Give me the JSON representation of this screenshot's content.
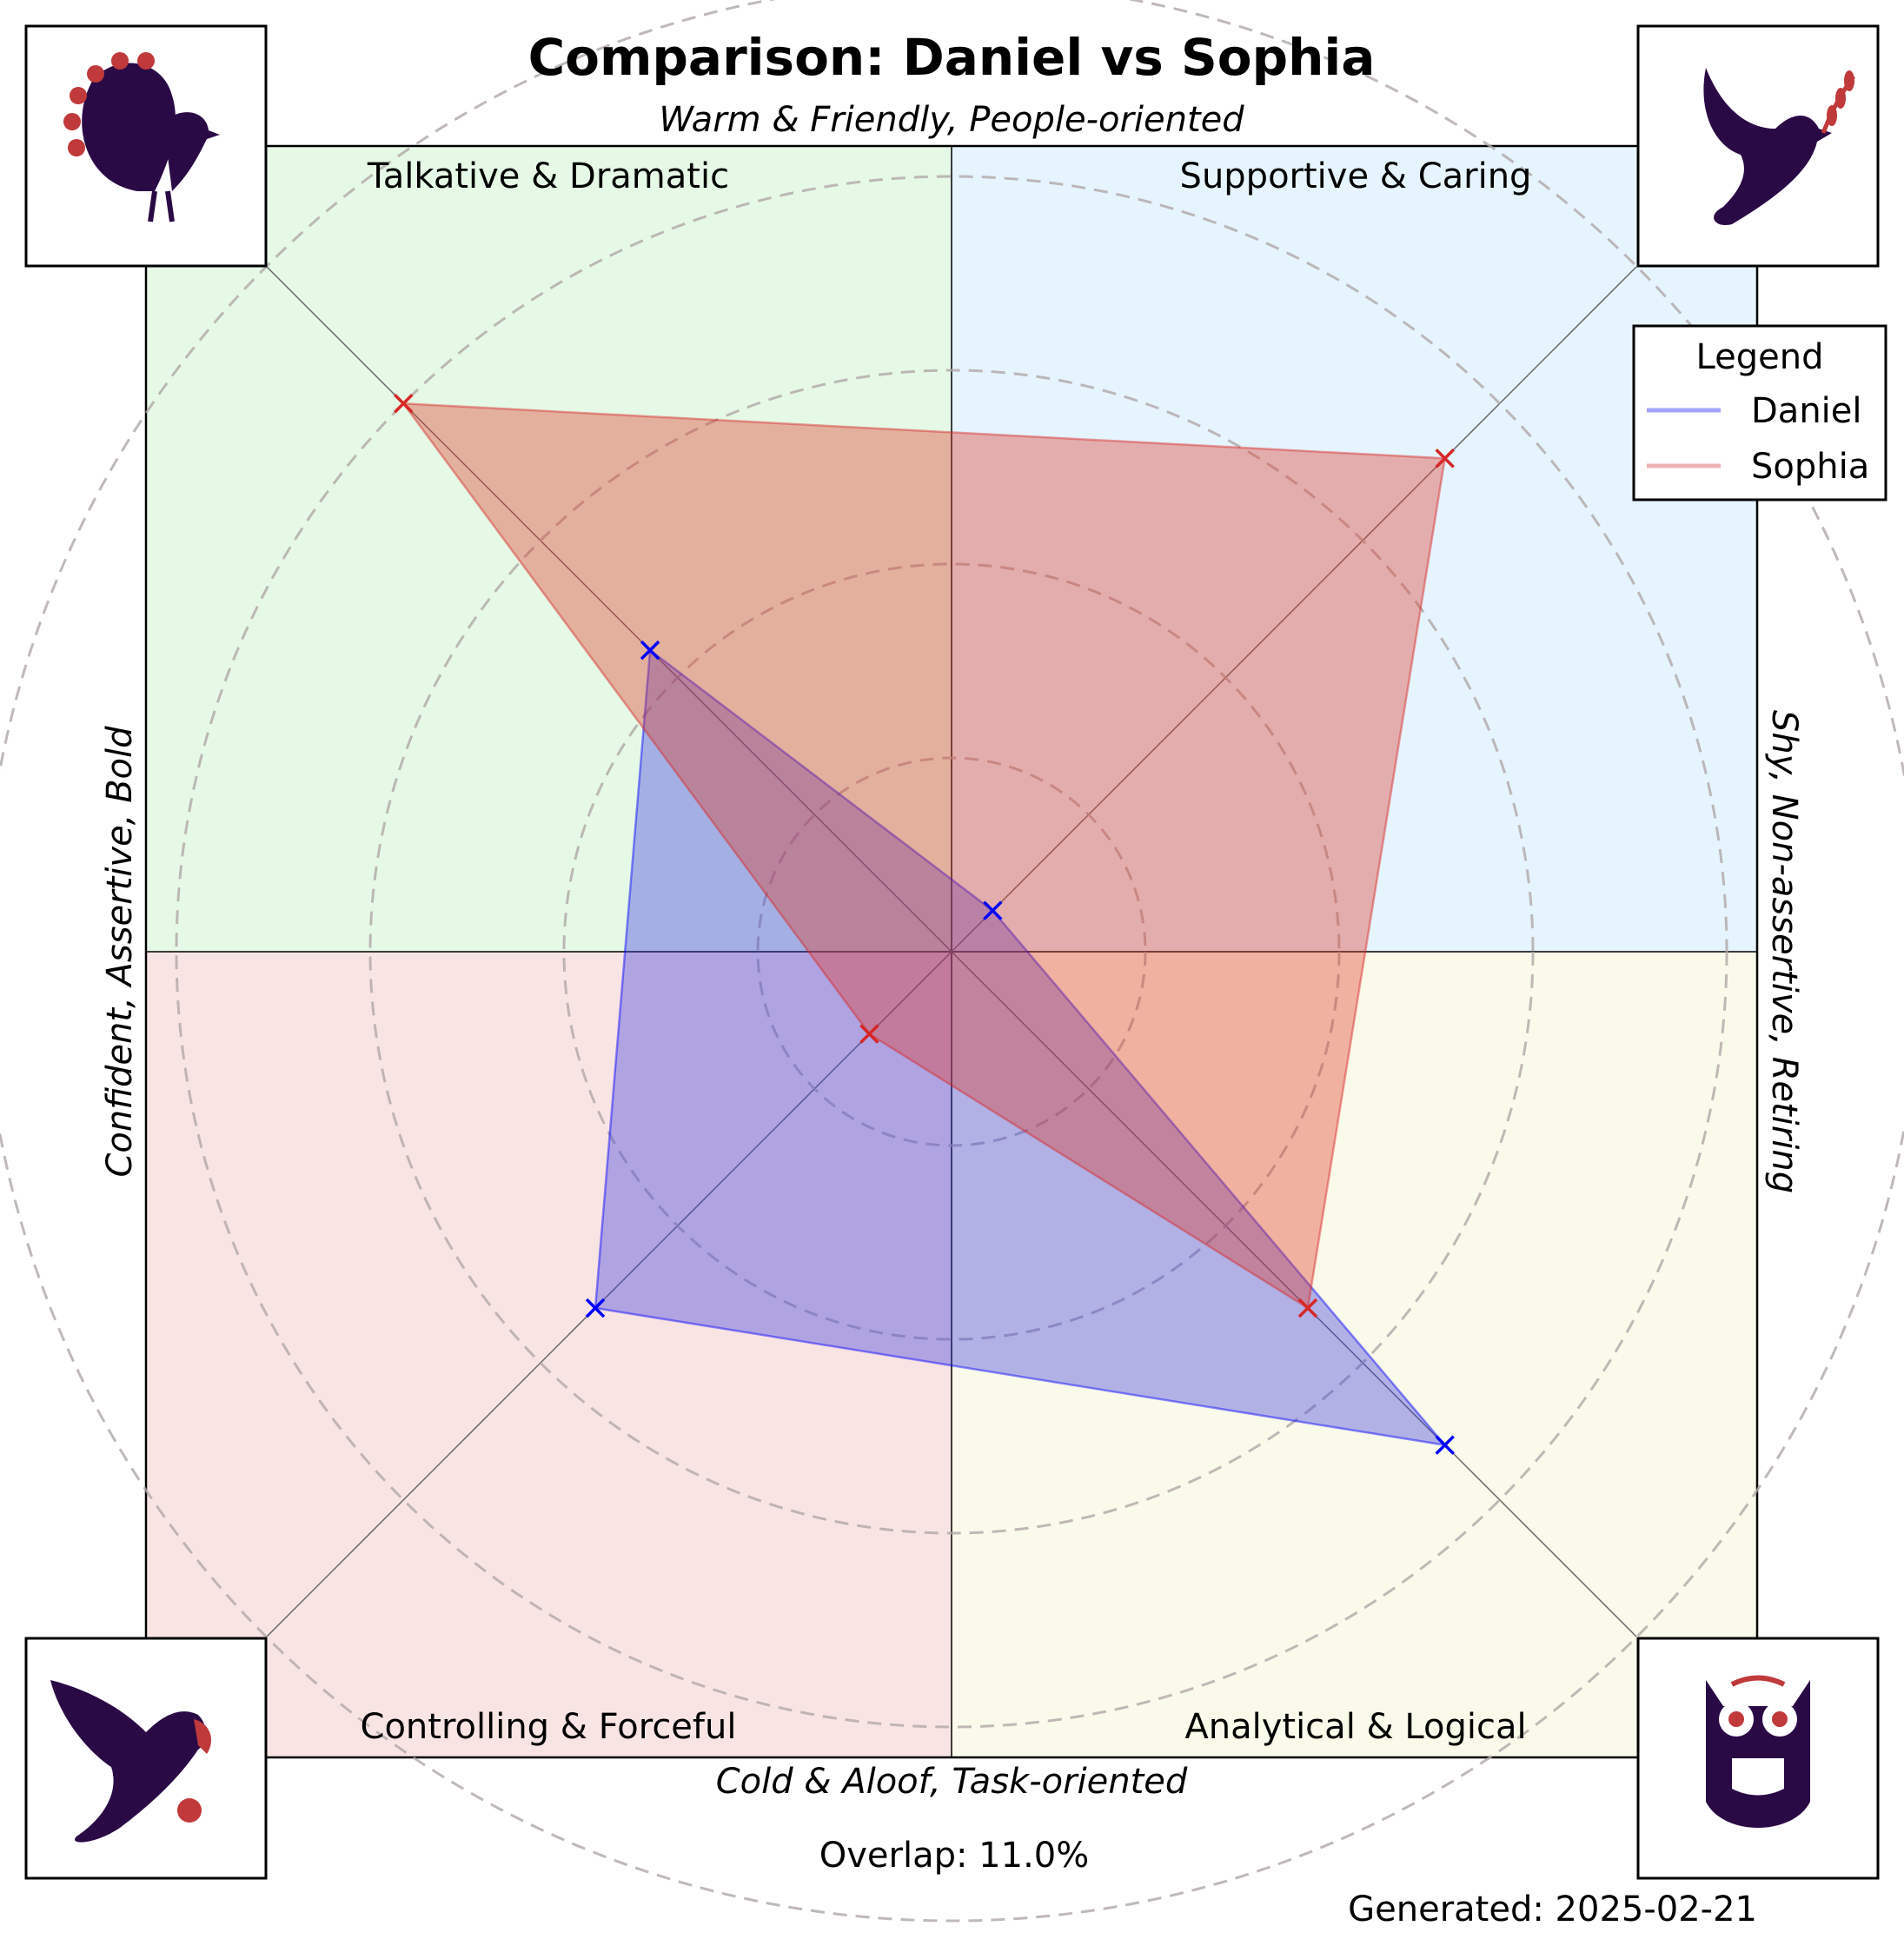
{
  "chart_data": {
    "type": "radar",
    "title": "Comparison: Daniel vs Sophia",
    "axis_labels": {
      "top": "Warm & Friendly, People-oriented",
      "bottom": "Cold & Aloof, Task-oriented",
      "left": "Confident, Assertive, Bold",
      "right": "Shy, Non-assertive, Retiring"
    },
    "quadrants": [
      {
        "name": "Talkative & Dramatic",
        "color": "#e6f9e6",
        "icon": "peacock-icon"
      },
      {
        "name": "Supportive & Caring",
        "color": "#e6f4fd",
        "icon": "dove-icon"
      },
      {
        "name": "Controlling & Forceful",
        "color": "#f9e4e4",
        "icon": "eagle-icon"
      },
      {
        "name": "Analytical & Logical",
        "color": "#fafaea",
        "icon": "owl-icon"
      }
    ],
    "axes": [
      "Talkative & Dramatic",
      "Supportive & Caring",
      "Analytical & Logical",
      "Controlling & Forceful"
    ],
    "rmax": 10,
    "ring_step": 2,
    "series": [
      {
        "name": "Daniel",
        "color": "#0000ff",
        "values": [
          4.4,
          0.6,
          7.2,
          5.2
        ]
      },
      {
        "name": "Sophia",
        "color": "#d62728",
        "values": [
          8.0,
          7.2,
          5.2,
          1.2
        ]
      }
    ],
    "legend": {
      "title": "Legend",
      "placement": "top-right"
    },
    "grid": true
  },
  "footer": {
    "overlap": "Overlap: 11.0%",
    "generated": "Generated: 2025-02-21"
  }
}
